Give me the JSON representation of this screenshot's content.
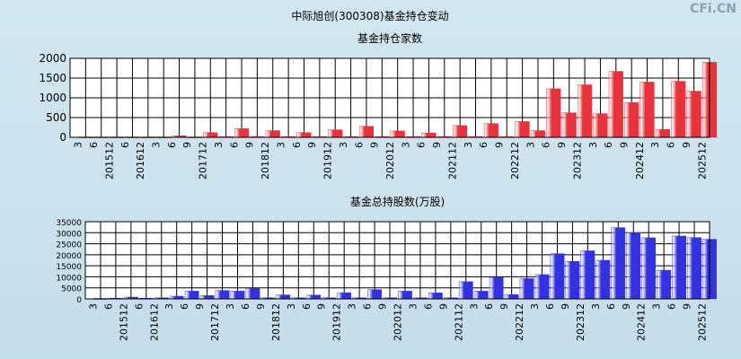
{
  "title": "中际旭创(300308)基金持仓变动",
  "watermark": "CFi.CN",
  "chart_data": [
    {
      "type": "bar",
      "title": "基金持仓家数",
      "categories": [
        "3",
        "6",
        "201512",
        "6",
        "201612",
        "3",
        "6",
        "9",
        "201712",
        "3",
        "6",
        "9",
        "201812",
        "3",
        "6",
        "9",
        "201912",
        "3",
        "6",
        "9",
        "202012",
        "3",
        "6",
        "9",
        "202112",
        "3",
        "6",
        "9",
        "202212",
        "3",
        "6",
        "9",
        "202312",
        "3",
        "6",
        "9",
        "202412",
        "3",
        "6",
        "9",
        "202512"
      ],
      "values": [
        10,
        10,
        10,
        10,
        10,
        10,
        40,
        10,
        120,
        20,
        220,
        20,
        170,
        20,
        120,
        20,
        190,
        20,
        280,
        20,
        160,
        20,
        110,
        20,
        300,
        20,
        350,
        20,
        400,
        170,
        1230,
        620,
        1330,
        600,
        1670,
        880,
        1400,
        200,
        1420,
        1170,
        1900
      ],
      "color": "#e8323c",
      "ylim": [
        0,
        2000
      ],
      "yticks": [
        0,
        500,
        1000,
        1500,
        2000
      ],
      "grid": true
    },
    {
      "type": "bar",
      "title": "基金总持股数(万股)",
      "categories": [
        "3",
        "6",
        "201512",
        "6",
        "201612",
        "3",
        "6",
        "9",
        "201712",
        "3",
        "6",
        "9",
        "201812",
        "3",
        "6",
        "9",
        "201912",
        "3",
        "6",
        "9",
        "202012",
        "3",
        "6",
        "9",
        "202112",
        "3",
        "6",
        "9",
        "202212",
        "3",
        "6",
        "9",
        "202312",
        "3",
        "6",
        "9",
        "202412",
        "3",
        "6",
        "9",
        "202512"
      ],
      "values": [
        200,
        300,
        800,
        300,
        500,
        1200,
        3500,
        1500,
        3800,
        3500,
        4800,
        500,
        1800,
        500,
        1700,
        500,
        2800,
        500,
        4200,
        500,
        3500,
        500,
        2700,
        500,
        7800,
        3500,
        9800,
        2000,
        9200,
        11000,
        20500,
        17000,
        21800,
        17500,
        32300,
        30000,
        27700,
        13000,
        28500,
        27800,
        27000
      ],
      "color": "#3232e0",
      "ylim": [
        0,
        35000
      ],
      "yticks": [
        0,
        5000,
        10000,
        15000,
        20000,
        25000,
        30000,
        35000
      ],
      "grid": true
    }
  ]
}
